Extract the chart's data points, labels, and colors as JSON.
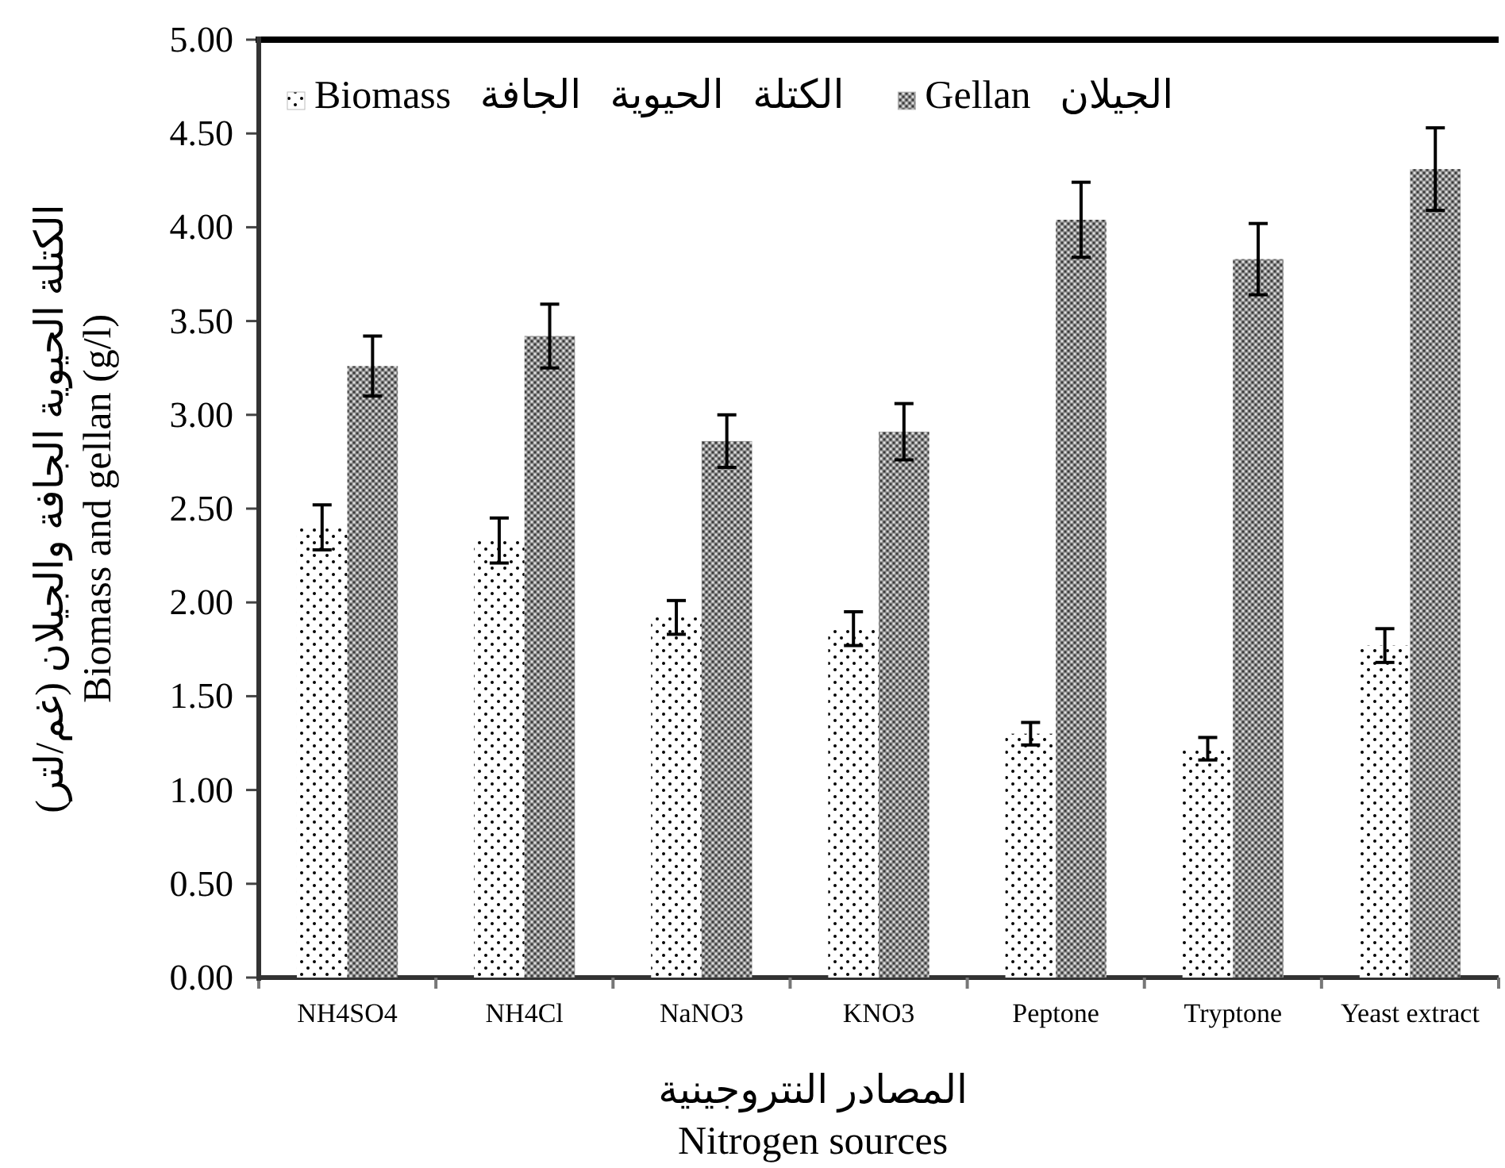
{
  "chart_data": {
    "type": "bar",
    "categories": [
      "NH4SO4",
      "NH4Cl",
      "NaNO3",
      "KNO3",
      "Peptone",
      "Tryptone",
      "Yeast extract"
    ],
    "series": [
      {
        "name": "Biomass الكتلة الحيوية الجافة",
        "color": "#ffffff",
        "values": [
          2.4,
          2.33,
          1.92,
          1.86,
          1.3,
          1.22,
          1.77
        ],
        "errors": [
          0.12,
          0.12,
          0.09,
          0.09,
          0.06,
          0.06,
          0.09
        ]
      },
      {
        "name": "Gellan الجيلان",
        "color": "#8c8c8c",
        "values": [
          3.26,
          3.42,
          2.86,
          2.91,
          4.04,
          3.83,
          4.31
        ],
        "errors": [
          0.16,
          0.17,
          0.14,
          0.15,
          0.2,
          0.19,
          0.22
        ]
      }
    ],
    "xlabel": "المصادر النتروجينية\nNitrogen sources",
    "ylabel": "الكتلة الحيوية الجافة والجيلان (غم/لتر)\nBiomass and gellan (g/l)",
    "ylim": [
      0,
      5
    ],
    "yticks": [
      {
        "value": 0,
        "label": "0.00"
      },
      {
        "value": 0.5,
        "label": "0.50"
      },
      {
        "value": 1,
        "label": "1.00"
      },
      {
        "value": 1.5,
        "label": "1.50"
      },
      {
        "value": 2,
        "label": "2.00"
      },
      {
        "value": 2.5,
        "label": "2.50"
      },
      {
        "value": 3,
        "label": "3.00"
      },
      {
        "value": 3.5,
        "label": "3.50"
      },
      {
        "value": 4,
        "label": "4.00"
      },
      {
        "value": 4.5,
        "label": "4.50"
      },
      {
        "value": 5,
        "label": "5.00"
      }
    ],
    "legend": "top left"
  }
}
